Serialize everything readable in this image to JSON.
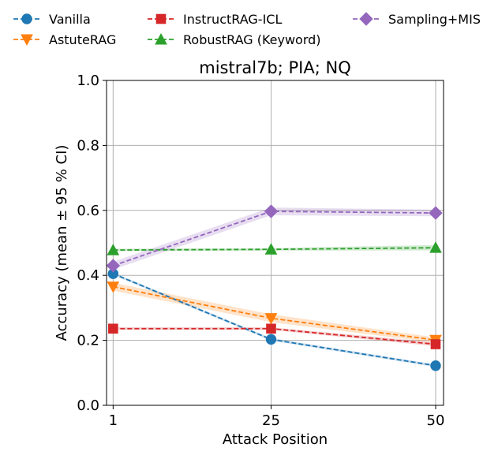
{
  "chart_data": {
    "type": "line",
    "title": "mistral7b; PIA; NQ",
    "xlabel": "Attack Position",
    "ylabel": "Accuracy (mean ± 95 % CI)",
    "x": [
      1,
      25,
      50
    ],
    "x_tick_labels": [
      "1",
      "25",
      "50"
    ],
    "ylim": [
      0.0,
      1.0
    ],
    "y_ticks": [
      0.0,
      0.2,
      0.4,
      0.6,
      0.8,
      1.0
    ],
    "y_tick_labels": [
      "0.0",
      "0.2",
      "0.4",
      "0.6",
      "0.8",
      "1.0"
    ],
    "grid": true,
    "legend_placement": "top, outside plot",
    "series": [
      {
        "name": "Vanilla",
        "color": "#1f77b4",
        "marker": "circle",
        "values": [
          0.405,
          0.203,
          0.122
        ],
        "ci": [
          0.004,
          0.004,
          0.004
        ]
      },
      {
        "name": "AstuteRAG",
        "color": "#ff7f0e",
        "marker": "triangle-down",
        "values": [
          0.365,
          0.268,
          0.201
        ],
        "ci": [
          0.012,
          0.012,
          0.008
        ]
      },
      {
        "name": "InstructRAG-ICL",
        "color": "#d62728",
        "marker": "square",
        "values": [
          0.236,
          0.236,
          0.188
        ],
        "ci": [
          0.004,
          0.004,
          0.006
        ]
      },
      {
        "name": "RobustRAG (Keyword)",
        "color": "#2ca02c",
        "marker": "triangle-up",
        "values": [
          0.478,
          0.48,
          0.485
        ],
        "ci": [
          0.004,
          0.004,
          0.008
        ]
      },
      {
        "name": "Sampling+MIS",
        "color": "#9467bd",
        "marker": "diamond",
        "values": [
          0.43,
          0.597,
          0.592
        ],
        "ci": [
          0.012,
          0.012,
          0.01
        ]
      }
    ]
  }
}
